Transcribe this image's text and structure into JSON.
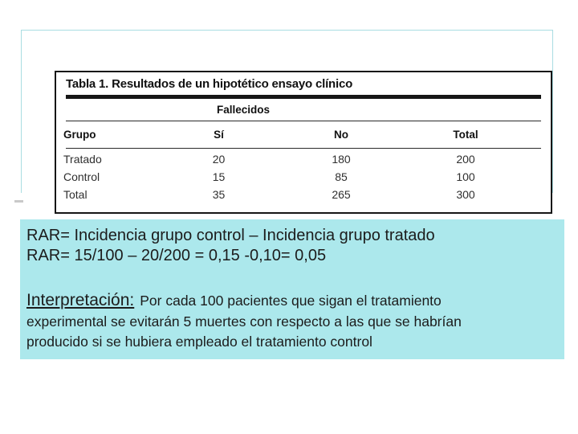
{
  "table": {
    "title": "Tabla 1. Resultados de un hipotético ensayo clínico",
    "span_header": "Fallecidos",
    "columns": {
      "group": "Grupo",
      "yes": "Sí",
      "no": "No",
      "total": "Total"
    },
    "rows": [
      {
        "label": "Tratado",
        "si": "20",
        "no": "180",
        "total": "200"
      },
      {
        "label": "Control",
        "si": "15",
        "no": "85",
        "total": "100"
      },
      {
        "label": "Total",
        "si": "35",
        "no": "265",
        "total": "300"
      }
    ]
  },
  "notes": {
    "rar_line1": "RAR= Incidencia grupo control – Incidencia grupo tratado",
    "rar_line2": "RAR= 15/100 – 20/200 = 0,15 -0,10= 0,05",
    "interpretation": {
      "label": "Interpretación:",
      "line1": "Por cada 100 pacientes que sigan el tratamiento",
      "line2": "experimental se evitarán 5 muertes con respecto a las que se habrían",
      "line3": "producido si se hubiera empleado el tratamiento control"
    }
  },
  "colors": {
    "highlight_box": "#ace8ec",
    "frame_border": "#a9dde2",
    "table_border": "#161616",
    "text": "#1c1c1c"
  },
  "chart_data": {
    "type": "table",
    "title": "Tabla 1. Resultados de un hipotético ensayo clínico",
    "column_group_header": "Fallecidos",
    "columns": [
      "Grupo",
      "Sí",
      "No",
      "Total"
    ],
    "rows": [
      [
        "Tratado",
        20,
        180,
        200
      ],
      [
        "Control",
        15,
        85,
        100
      ],
      [
        "Total",
        35,
        265,
        300
      ]
    ]
  }
}
